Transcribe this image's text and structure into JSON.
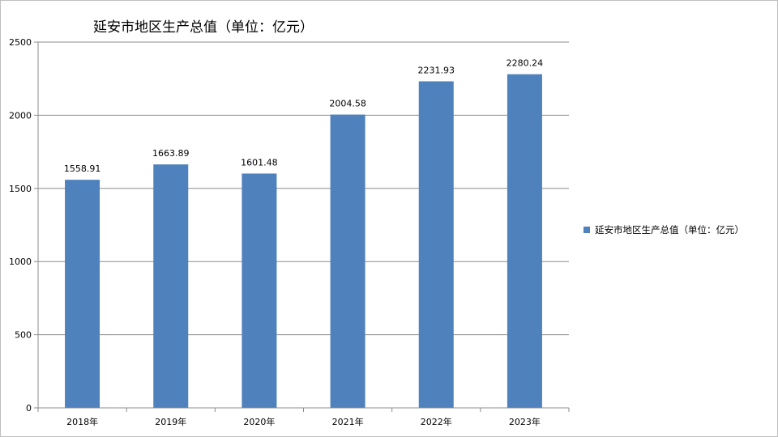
{
  "chart_data": {
    "type": "bar",
    "title": "延安市地区生产总值（单位：亿元）",
    "categories": [
      "2018年",
      "2019年",
      "2020年",
      "2021年",
      "2022年",
      "2023年"
    ],
    "series": [
      {
        "name": "延安市地区生产总值（单位：亿元）",
        "values": [
          1558.91,
          1663.89,
          1601.48,
          2004.58,
          2231.93,
          2280.24
        ],
        "color": "#4f81bd"
      }
    ],
    "data_labels": [
      "1558.91",
      "1663.89",
      "1601.48",
      "2004.58",
      "2231.93",
      "2280.24"
    ],
    "y_ticks": [
      "0",
      "500",
      "1000",
      "1500",
      "2000",
      "2500"
    ],
    "ylim": [
      0,
      2500
    ],
    "grid": true,
    "legend_position": "right",
    "colors": {
      "gridline": "#8c8c8c",
      "axis": "#8c8c8c"
    }
  }
}
